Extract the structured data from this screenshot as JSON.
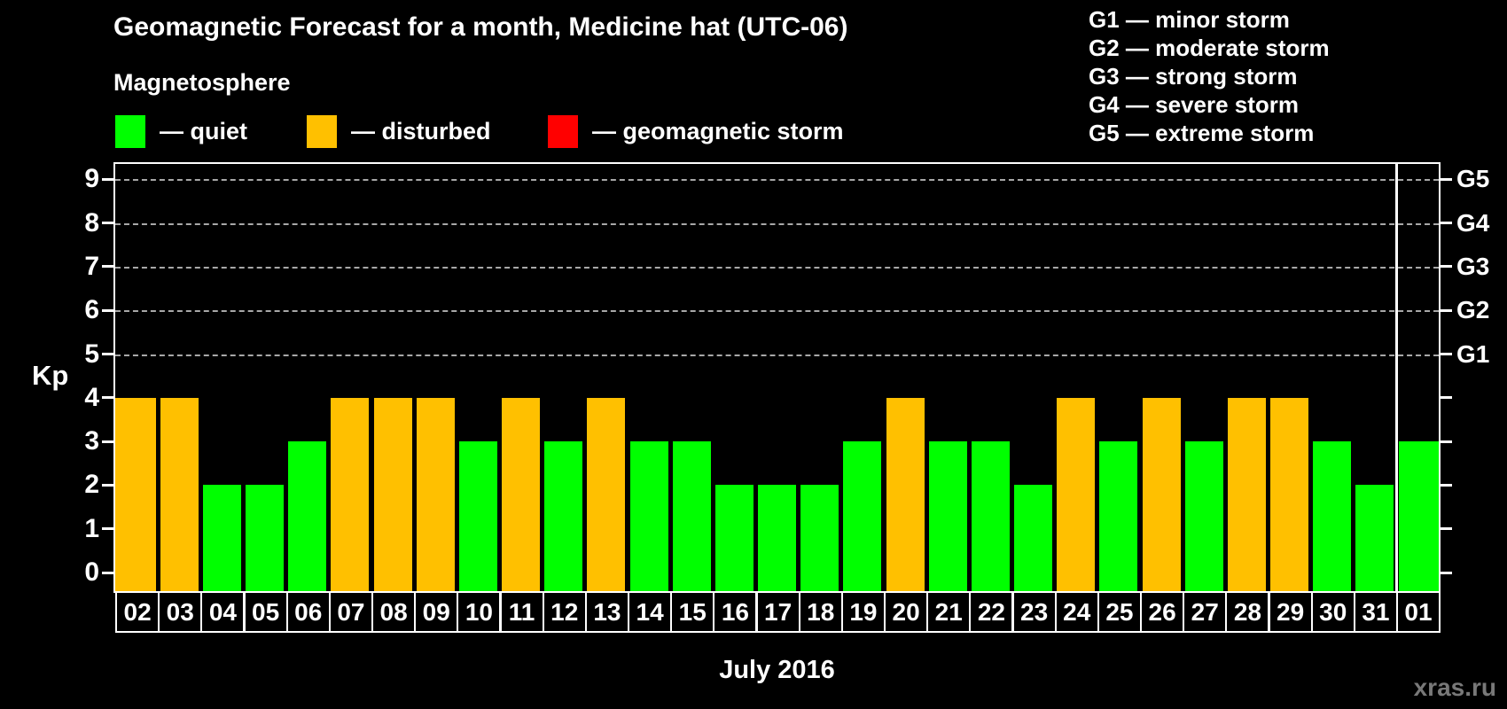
{
  "title": "Geomagnetic Forecast for a month, Medicine hat (UTC-06)",
  "subtitle": "Magnetosphere",
  "watermark": "xras.ru",
  "legend": {
    "items": [
      {
        "status": "quiet",
        "label": "— quiet",
        "color": "#00FF00"
      },
      {
        "status": "disturbed",
        "label": "— disturbed",
        "color": "#FFC000"
      },
      {
        "status": "storm",
        "label": "— geomagnetic storm",
        "color": "#FF0000"
      }
    ]
  },
  "storm_scale": [
    "G1 — minor storm",
    "G2 — moderate storm",
    "G3 — strong storm",
    "G4 — severe storm",
    "G5 — extreme storm"
  ],
  "chart_data": {
    "type": "bar",
    "title": "Geomagnetic Forecast for a month, Medicine hat (UTC-06)",
    "xlabel": "July 2016",
    "ylabel": "Kp",
    "ylim": [
      0,
      9
    ],
    "yticks": [
      0,
      1,
      2,
      3,
      4,
      5,
      6,
      7,
      8,
      9
    ],
    "gridline_levels": [
      5,
      6,
      7,
      8,
      9
    ],
    "right_axis_labels": [
      {
        "level": 5,
        "label": "G1"
      },
      {
        "level": 6,
        "label": "G2"
      },
      {
        "level": 7,
        "label": "G3"
      },
      {
        "level": 8,
        "label": "G4"
      },
      {
        "level": 9,
        "label": "G5"
      }
    ],
    "colors": {
      "quiet": "#00FF00",
      "disturbed": "#FFC000",
      "storm": "#FF0000"
    },
    "categories": [
      "02",
      "03",
      "04",
      "05",
      "06",
      "07",
      "08",
      "09",
      "10",
      "11",
      "12",
      "13",
      "14",
      "15",
      "16",
      "17",
      "18",
      "19",
      "20",
      "21",
      "22",
      "23",
      "24",
      "25",
      "26",
      "27",
      "28",
      "29",
      "30",
      "31",
      "01"
    ],
    "values": [
      4,
      4,
      2,
      2,
      3,
      4,
      4,
      4,
      3,
      4,
      3,
      4,
      3,
      3,
      2,
      2,
      2,
      3,
      4,
      3,
      3,
      2,
      4,
      3,
      4,
      3,
      4,
      4,
      3,
      2,
      3
    ],
    "statuses": [
      "disturbed",
      "disturbed",
      "quiet",
      "quiet",
      "quiet",
      "disturbed",
      "disturbed",
      "disturbed",
      "quiet",
      "disturbed",
      "quiet",
      "disturbed",
      "quiet",
      "quiet",
      "quiet",
      "quiet",
      "quiet",
      "quiet",
      "disturbed",
      "quiet",
      "quiet",
      "quiet",
      "disturbed",
      "quiet",
      "disturbed",
      "quiet",
      "disturbed",
      "disturbed",
      "quiet",
      "quiet",
      "quiet"
    ],
    "month_divider_before_category": "01",
    "legend_position": "top",
    "grid": "dashed horizontal at Kp 5-9"
  }
}
